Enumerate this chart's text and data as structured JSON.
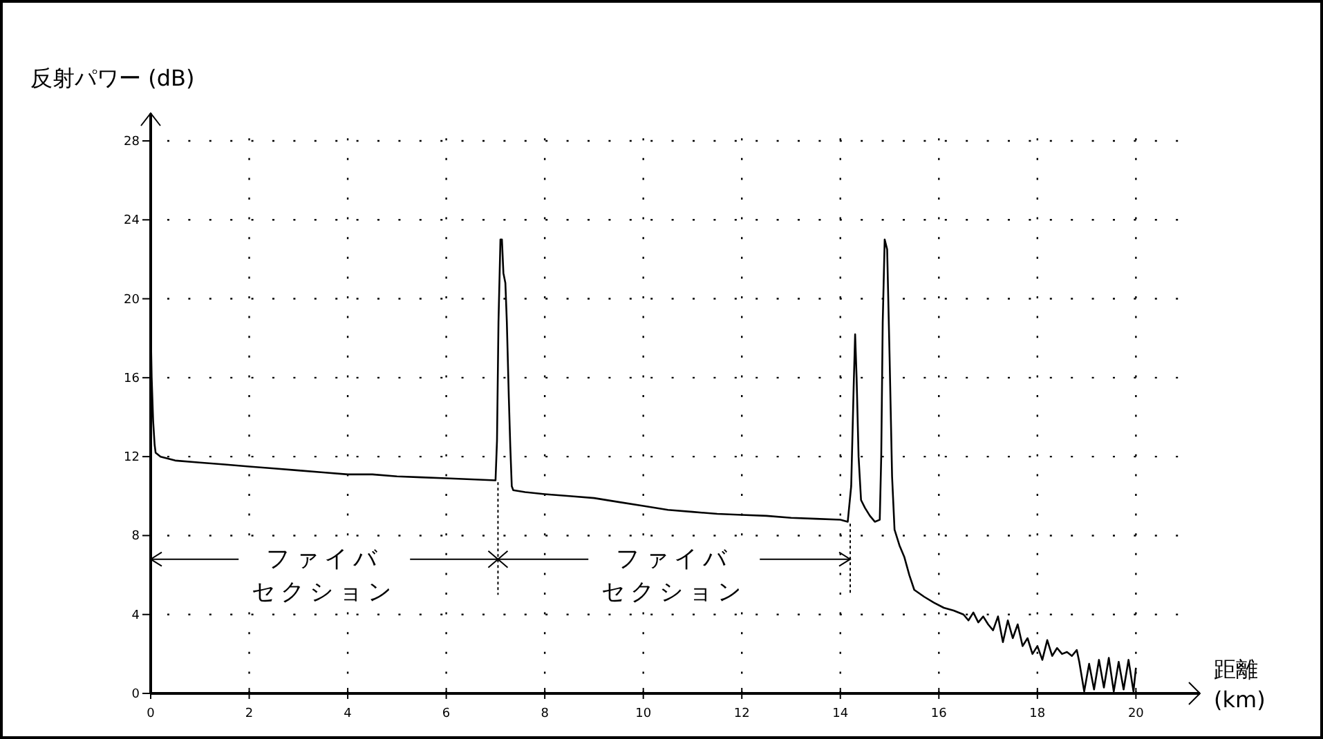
{
  "chart_data": {
    "type": "line",
    "xlabel": "距離\n(km)",
    "ylabel": "反射パワー (dB)",
    "xlim": [
      0,
      21.3
    ],
    "ylim": [
      0,
      29.4
    ],
    "xticks": [
      0,
      2,
      4,
      6,
      8,
      10,
      12,
      14,
      16,
      18,
      20
    ],
    "yticks": [
      0,
      4,
      8,
      12,
      16,
      20,
      24,
      28
    ],
    "grid": true,
    "marker": "none",
    "line_style": "solid",
    "series": [
      {
        "color": "#000000",
        "x": [
          0,
          0.02,
          0.05,
          0.08,
          0.1,
          0.2,
          0.5,
          1,
          1.5,
          2,
          2.5,
          3,
          3.5,
          4,
          4.5,
          5,
          5.5,
          6,
          6.5,
          7,
          7.03,
          7.06,
          7.1,
          7.13,
          7.16,
          7.2,
          7.23,
          7.27,
          7.3,
          7.33,
          7.36,
          7.6,
          8,
          8.5,
          9,
          9.5,
          10,
          10.5,
          11,
          11.5,
          12,
          12.5,
          13,
          13.5,
          14,
          14.15,
          14.22,
          14.27,
          14.3,
          14.33,
          14.37,
          14.42,
          14.5,
          14.6,
          14.7,
          14.8,
          14.83,
          14.86,
          14.9,
          14.95,
          15.0,
          15.05,
          15.1,
          15.2,
          15.3,
          15.4,
          15.5,
          15.7,
          15.9,
          16.1,
          16.3,
          16.5,
          16.6,
          16.7,
          16.8,
          16.9,
          17.0,
          17.1,
          17.2,
          17.3,
          17.4,
          17.5,
          17.6,
          17.7,
          17.8,
          17.9,
          18.0,
          18.1,
          18.2,
          18.3,
          18.4,
          18.5,
          18.6,
          18.7,
          18.8,
          18.85,
          18.95,
          19.05,
          19.15,
          19.25,
          19.35,
          19.45,
          19.55,
          19.65,
          19.75,
          19.85,
          19.95,
          20.0
        ],
        "values": [
          18.6,
          16.0,
          13.8,
          12.6,
          12.2,
          12.0,
          11.8,
          11.7,
          11.6,
          11.5,
          11.4,
          11.3,
          11.2,
          11.1,
          11.1,
          11.0,
          10.95,
          10.9,
          10.85,
          10.8,
          12.8,
          18.8,
          23.0,
          23.0,
          21.3,
          20.8,
          18.8,
          15.0,
          12.5,
          10.5,
          10.3,
          10.2,
          10.1,
          10.0,
          9.9,
          9.7,
          9.5,
          9.3,
          9.2,
          9.1,
          9.05,
          9.0,
          8.9,
          8.85,
          8.8,
          8.7,
          10.5,
          15.5,
          18.2,
          16.0,
          12.0,
          9.8,
          9.4,
          9.0,
          8.7,
          8.8,
          12.0,
          18.8,
          23.0,
          22.5,
          17.0,
          11.0,
          8.3,
          7.5,
          6.9,
          6.0,
          5.25,
          4.9,
          4.6,
          4.34,
          4.2,
          4.0,
          3.7,
          4.1,
          3.6,
          3.9,
          3.5,
          3.2,
          3.9,
          2.6,
          3.7,
          2.8,
          3.5,
          2.4,
          2.8,
          2.0,
          2.4,
          1.7,
          2.7,
          1.9,
          2.3,
          2.0,
          2.1,
          1.9,
          2.2,
          1.6,
          0.1,
          1.5,
          0.2,
          1.7,
          0.3,
          1.8,
          0.1,
          1.6,
          0.2,
          1.7,
          0.1,
          1.3
        ]
      }
    ],
    "annotations": [
      "ファイバ",
      "セクション",
      "ファイバ",
      "セクション"
    ]
  }
}
